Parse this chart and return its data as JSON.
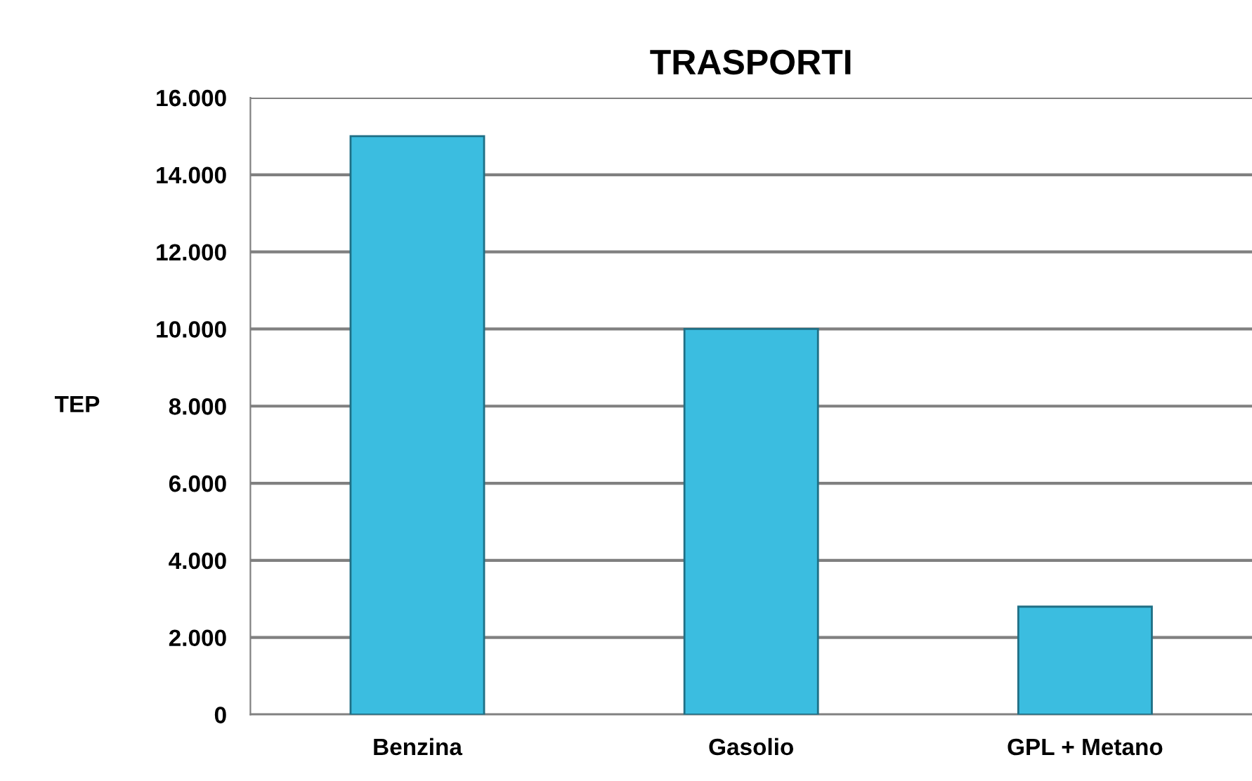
{
  "chart_data": {
    "type": "bar",
    "title": "TRASPORTI",
    "ylabel": "TEP",
    "categories": [
      "Benzina",
      "Gasolio",
      "GPL + Metano"
    ],
    "values": [
      15000,
      10000,
      2800
    ],
    "color": "#3bbde0",
    "ylim": [
      0,
      16000
    ],
    "yticks": [
      {
        "value": 0,
        "label": "0"
      },
      {
        "value": 2000,
        "label": "2.000"
      },
      {
        "value": 4000,
        "label": "4.000"
      },
      {
        "value": 6000,
        "label": "6.000"
      },
      {
        "value": 8000,
        "label": "8.000"
      },
      {
        "value": 10000,
        "label": "10.000"
      },
      {
        "value": 12000,
        "label": "12.000"
      },
      {
        "value": 14000,
        "label": "14.000"
      },
      {
        "value": 16000,
        "label": "16.000"
      }
    ],
    "grid": "y",
    "legend": false
  }
}
